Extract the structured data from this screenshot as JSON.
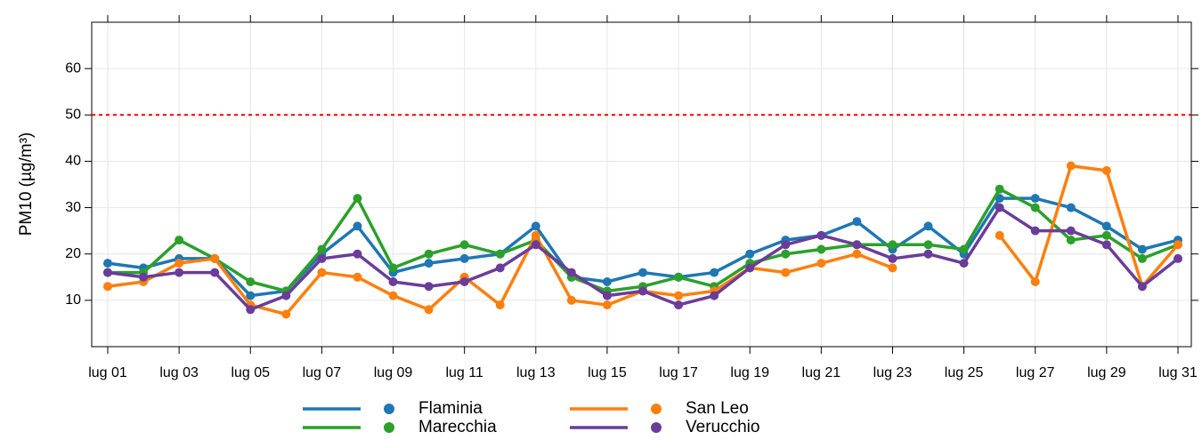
{
  "chart_data": {
    "type": "line",
    "y_label": "PM10 (µg/m³)",
    "categories": [
      "lug 01",
      null,
      "lug 03",
      null,
      "lug 05",
      null,
      "lug 07",
      null,
      "lug 09",
      null,
      "lug 11",
      null,
      "lug 13",
      null,
      "lug 15",
      null,
      "lug 17",
      null,
      "lug 19",
      null,
      "lug 21",
      null,
      "lug 23",
      null,
      "lug 25",
      null,
      "lug 27",
      null,
      "lug 29",
      null,
      "lug 31"
    ],
    "series": [
      {
        "name": "Flaminia",
        "color": "#1f77b4",
        "values": [
          18,
          17,
          19,
          19,
          11,
          12,
          20,
          26,
          16,
          18,
          19,
          20,
          26,
          15,
          14,
          16,
          15,
          16,
          20,
          23,
          24,
          27,
          21,
          26,
          20,
          32,
          32,
          30,
          26,
          21,
          23
        ]
      },
      {
        "name": "Marecchia",
        "color": "#2ca02c",
        "values": [
          16,
          16,
          23,
          19,
          14,
          12,
          21,
          32,
          17,
          20,
          22,
          20,
          23,
          15,
          12,
          13,
          15,
          13,
          18,
          20,
          21,
          22,
          22,
          22,
          21,
          34,
          30,
          23,
          24,
          19,
          22
        ]
      },
      {
        "name": "San Leo",
        "color": "#ff7f0e",
        "values": [
          13,
          14,
          18,
          19,
          9,
          7,
          16,
          15,
          11,
          8,
          15,
          9,
          24,
          10,
          9,
          12,
          11,
          12,
          17,
          16,
          18,
          20,
          17,
          null,
          null,
          24,
          14,
          39,
          38,
          13,
          22
        ]
      },
      {
        "name": "Verucchio",
        "color": "#6a3d9a",
        "values": [
          16,
          15,
          16,
          16,
          8,
          11,
          19,
          20,
          14,
          13,
          14,
          17,
          22,
          16,
          11,
          12,
          9,
          11,
          17,
          22,
          24,
          22,
          19,
          20,
          18,
          30,
          25,
          25,
          22,
          13,
          19
        ]
      }
    ],
    "ylim": [
      0,
      70
    ],
    "yticks": [
      10,
      20,
      30,
      40,
      50,
      60
    ],
    "grid": true,
    "reference_line": {
      "value": 50,
      "color": "#ff0000"
    },
    "legend": "bottom"
  }
}
